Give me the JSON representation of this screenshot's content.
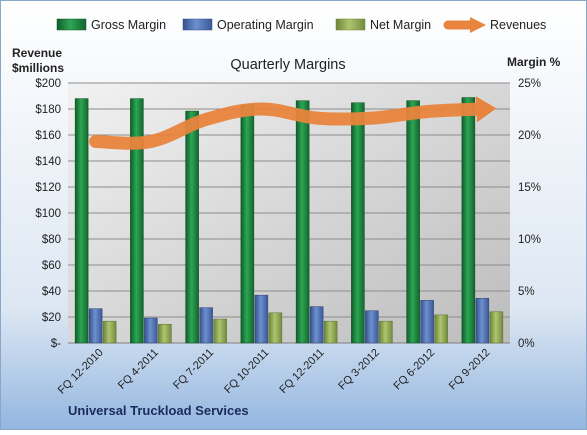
{
  "chart_data": {
    "type": "bar",
    "title": "Quarterly Margins",
    "company": "Universal Truckload  Services",
    "left_axis": {
      "label_line1": "Revenue",
      "label_line2": "$millions",
      "ylim": [
        0,
        200
      ],
      "ticks": [
        "$-",
        "$20",
        "$40",
        "$60",
        "$80",
        "$100",
        "$120",
        "$140",
        "$160",
        "$180",
        "$200"
      ]
    },
    "right_axis": {
      "label": "Margin  %",
      "ylim": [
        0,
        25
      ],
      "ticks": [
        "0%",
        "5%",
        "10%",
        "15%",
        "20%",
        "25%"
      ]
    },
    "categories": [
      "FQ 12-2010",
      "FQ 4-2011",
      "FQ 7-2011",
      "FQ 10-2011",
      "FQ 12-2011",
      "FQ 3-2012",
      "FQ 6-2012",
      "FQ 9-2012"
    ],
    "series": [
      {
        "name": "Gross Margin",
        "axis": "right",
        "color": "#1e8a45",
        "values": [
          23.5,
          23.5,
          22.3,
          22.9,
          23.3,
          23.1,
          23.3,
          23.6
        ]
      },
      {
        "name": "Operating Margin",
        "axis": "right",
        "color": "#4f6fb0",
        "values": [
          3.3,
          2.4,
          3.4,
          4.6,
          3.5,
          3.1,
          4.1,
          4.3
        ]
      },
      {
        "name": "Net Margin",
        "axis": "right",
        "color": "#8fa85a",
        "values": [
          2.1,
          1.8,
          2.3,
          2.9,
          2.1,
          2.1,
          2.7,
          3.0
        ]
      },
      {
        "name": "Revenues",
        "axis": "left",
        "type": "line",
        "color": "#e8843d",
        "values": [
          155,
          155,
          172,
          180,
          173,
          173,
          178,
          180
        ]
      }
    ],
    "grid": true,
    "legend": "top"
  }
}
